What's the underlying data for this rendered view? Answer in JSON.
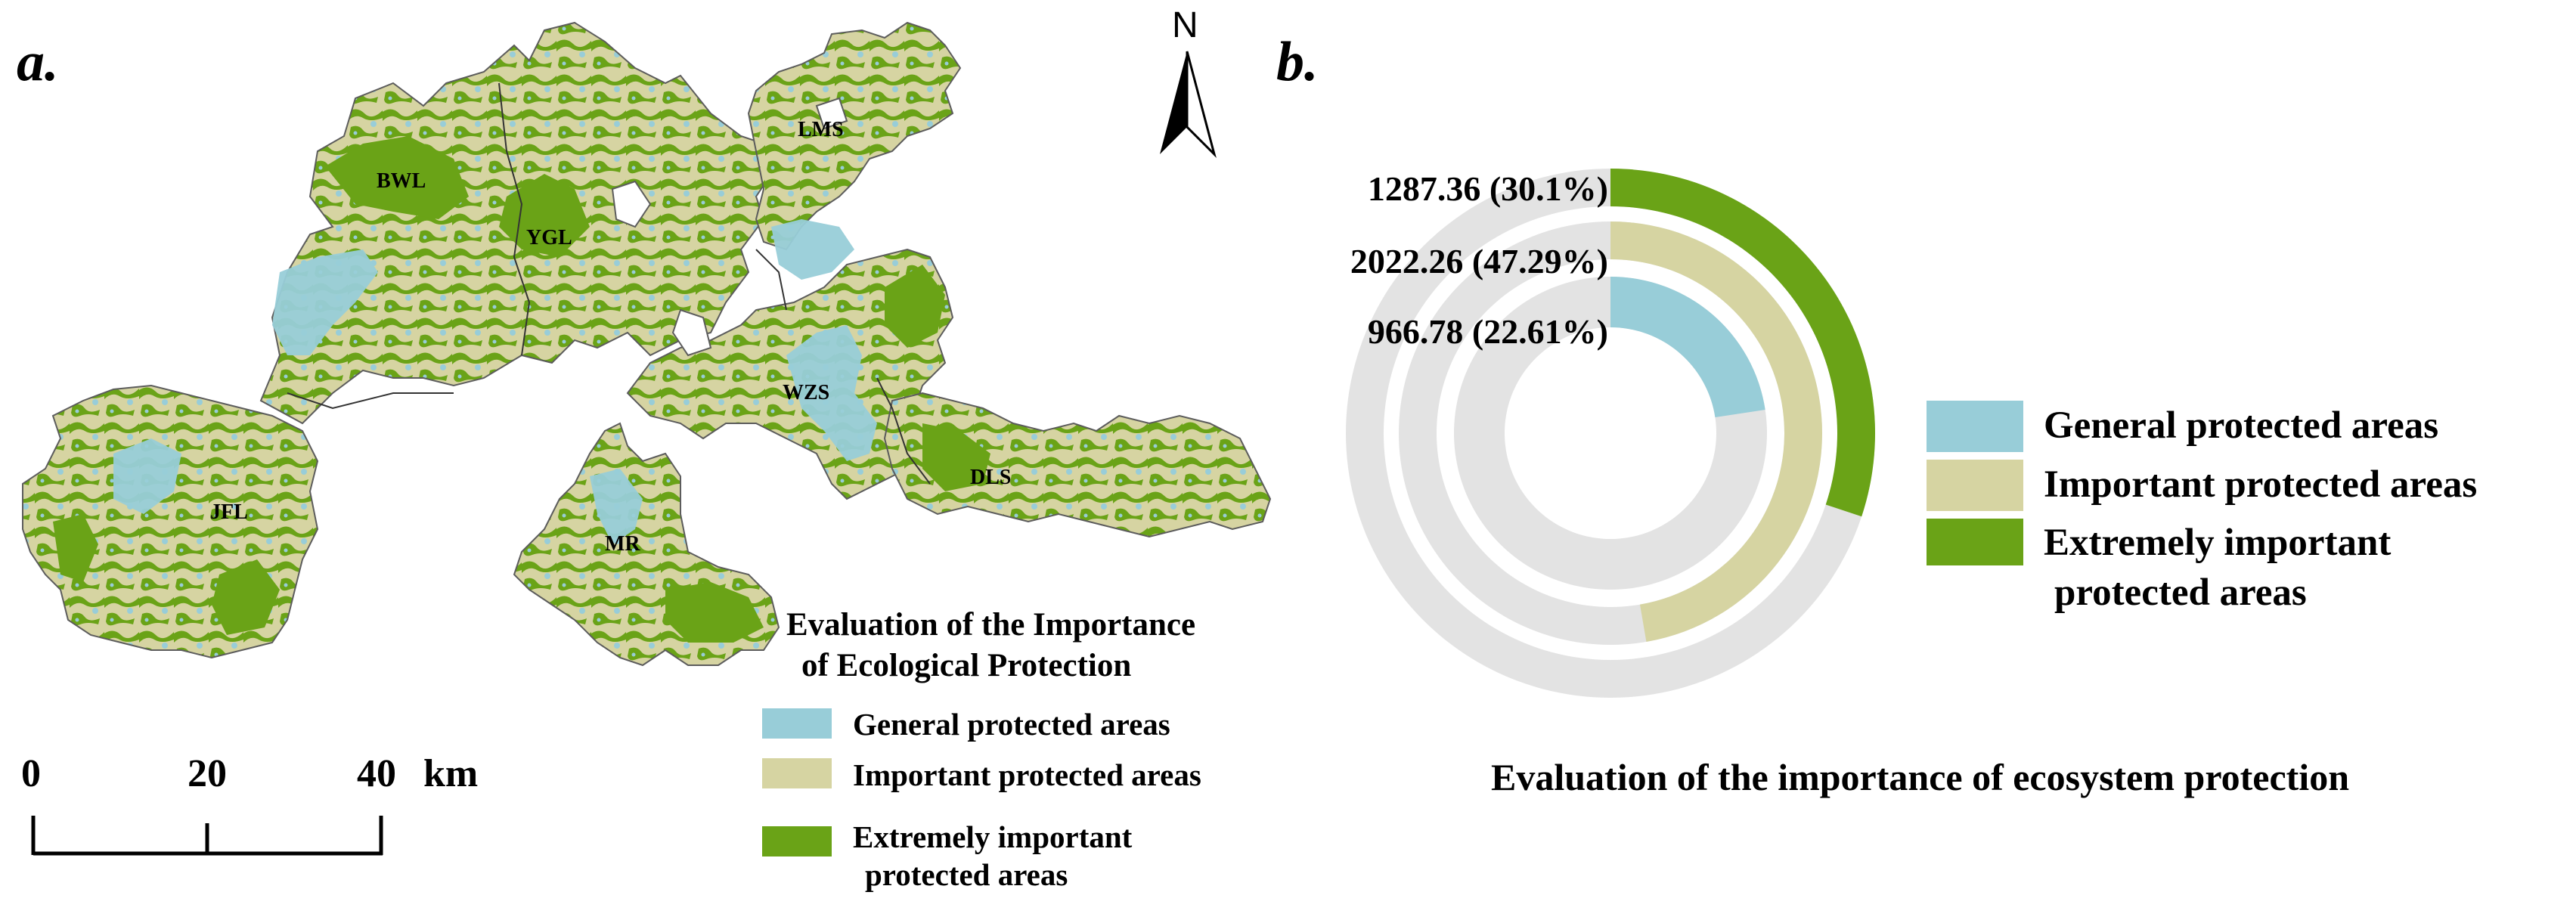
{
  "panel_a": {
    "label": "a.",
    "north_arrow": "N",
    "regions": [
      "BWL",
      "YGL",
      "LMS",
      "WZS",
      "DLS",
      "JFL",
      "MR"
    ],
    "legend": {
      "title_line1": "Evaluation of the Importance",
      "title_line2": "of Ecological Protection",
      "items": [
        {
          "label": "General protected areas",
          "color": "#98cdd8"
        },
        {
          "label": "Important protected areas",
          "color": "#d6d4a2"
        },
        {
          "label_line1": "Extremely important",
          "label_line2": "protected areas",
          "color": "#6aa317"
        }
      ]
    },
    "scale_bar": {
      "ticks": [
        "0",
        "20",
        "40"
      ],
      "unit": "km"
    }
  },
  "panel_b": {
    "label": "b.",
    "title": "Evaluation of the importance of ecosystem protection",
    "legend": [
      {
        "label": "General protected areas",
        "color": "#98cdd8"
      },
      {
        "label": "Important protected areas",
        "color": "#d6d4a2"
      },
      {
        "label_line1": "Extremely important",
        "label_line2": "protected areas",
        "color": "#6aa317"
      }
    ]
  },
  "chart_data": {
    "type": "pie",
    "subtype": "concentric-ring",
    "title": "Evaluation of the importance of ecosystem protection",
    "series": [
      {
        "name": "Extremely important protected areas",
        "value": 1287.36,
        "percent": 30.1,
        "label": "1287.36 (30.1%)",
        "color": "#6aa317",
        "ring": "outer"
      },
      {
        "name": "Important protected areas",
        "value": 2022.26,
        "percent": 47.29,
        "label": "2022.26 (47.29%)",
        "color": "#d6d4a2",
        "ring": "middle"
      },
      {
        "name": "General protected areas",
        "value": 966.78,
        "percent": 22.61,
        "label": "966.78 (22.61%)",
        "color": "#98cdd8",
        "ring": "inner"
      }
    ],
    "track_color": "#e3e3e3"
  }
}
